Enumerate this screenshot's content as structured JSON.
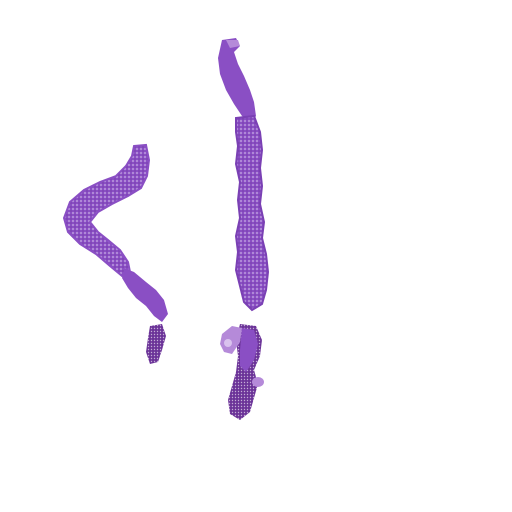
{
  "image": {
    "background_color": "#ffffff",
    "tissue_colors": {
      "stain_primary": "#8a4fc4",
      "stain_dark": "#5e2a8c",
      "stain_light": "#b58ad9",
      "stain_pale": "#d9c2ee"
    }
  }
}
